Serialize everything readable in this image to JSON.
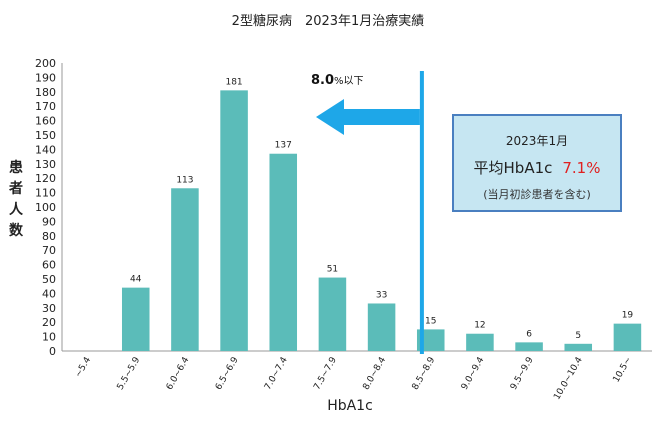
{
  "title": "2型糖尿病　2023年1月治療実績",
  "info_box": {
    "date": "2023年1月",
    "label": "平均HbA1c",
    "value": "7.1%",
    "note": "(当月初診患者を含む)"
  },
  "threshold": {
    "label_main": "8.0",
    "label_suffix": "%以下",
    "x_position": 7.5
  },
  "colors": {
    "bar": "#5bbcb9",
    "threshold_line": "#1ea7e8",
    "arrow": "#1ea7e8",
    "info_border": "#4a7fc0",
    "info_bg": "#c6e6f2",
    "highlight": "#e02020"
  },
  "chart_data": {
    "type": "bar",
    "title": "2型糖尿病　2023年1月治療実績",
    "xlabel": "HbA1c",
    "ylabel": "患者人数",
    "ylim": [
      0,
      200
    ],
    "ytick_step": 10,
    "grid": false,
    "categories": [
      "~5.4",
      "5.5~5.9",
      "6.0~6.4",
      "6.5~6.9",
      "7.0~7.4",
      "7.5~7.9",
      "8.0~8.4",
      "8.5~8.9",
      "9.0~9.4",
      "9.5~9.9",
      "10.0~10.4",
      "10.5~"
    ],
    "values": [
      0,
      44,
      113,
      181,
      137,
      51,
      33,
      15,
      12,
      6,
      5,
      19
    ],
    "labels": [
      "",
      "44",
      "113",
      "181",
      "137",
      "51",
      "33",
      "15",
      "12",
      "6",
      "5",
      "19"
    ]
  }
}
